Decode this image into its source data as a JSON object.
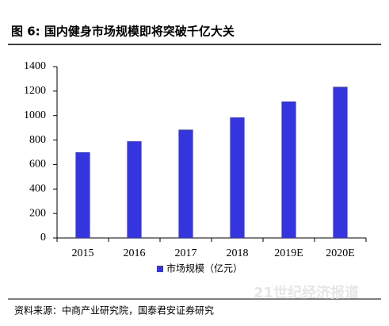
{
  "chart_data": {
    "type": "bar",
    "title": "图 6: 国内健身市场规模即将突破千亿大关",
    "categories": [
      "2015",
      "2016",
      "2017",
      "2018",
      "2019E",
      "2020E"
    ],
    "series": [
      {
        "name": "市场规模（亿元）",
        "color": "#3535e0",
        "values": [
          700,
          790,
          885,
          985,
          1115,
          1235
        ]
      }
    ],
    "ylim": [
      0,
      1400
    ],
    "yticks": [
      0,
      200,
      400,
      600,
      800,
      1000,
      1200,
      1400
    ],
    "grid": false,
    "legend": "bottom",
    "source": "资料来源：中商产业研究院，国泰君安证券研究",
    "watermark": "21世纪经济报道"
  }
}
